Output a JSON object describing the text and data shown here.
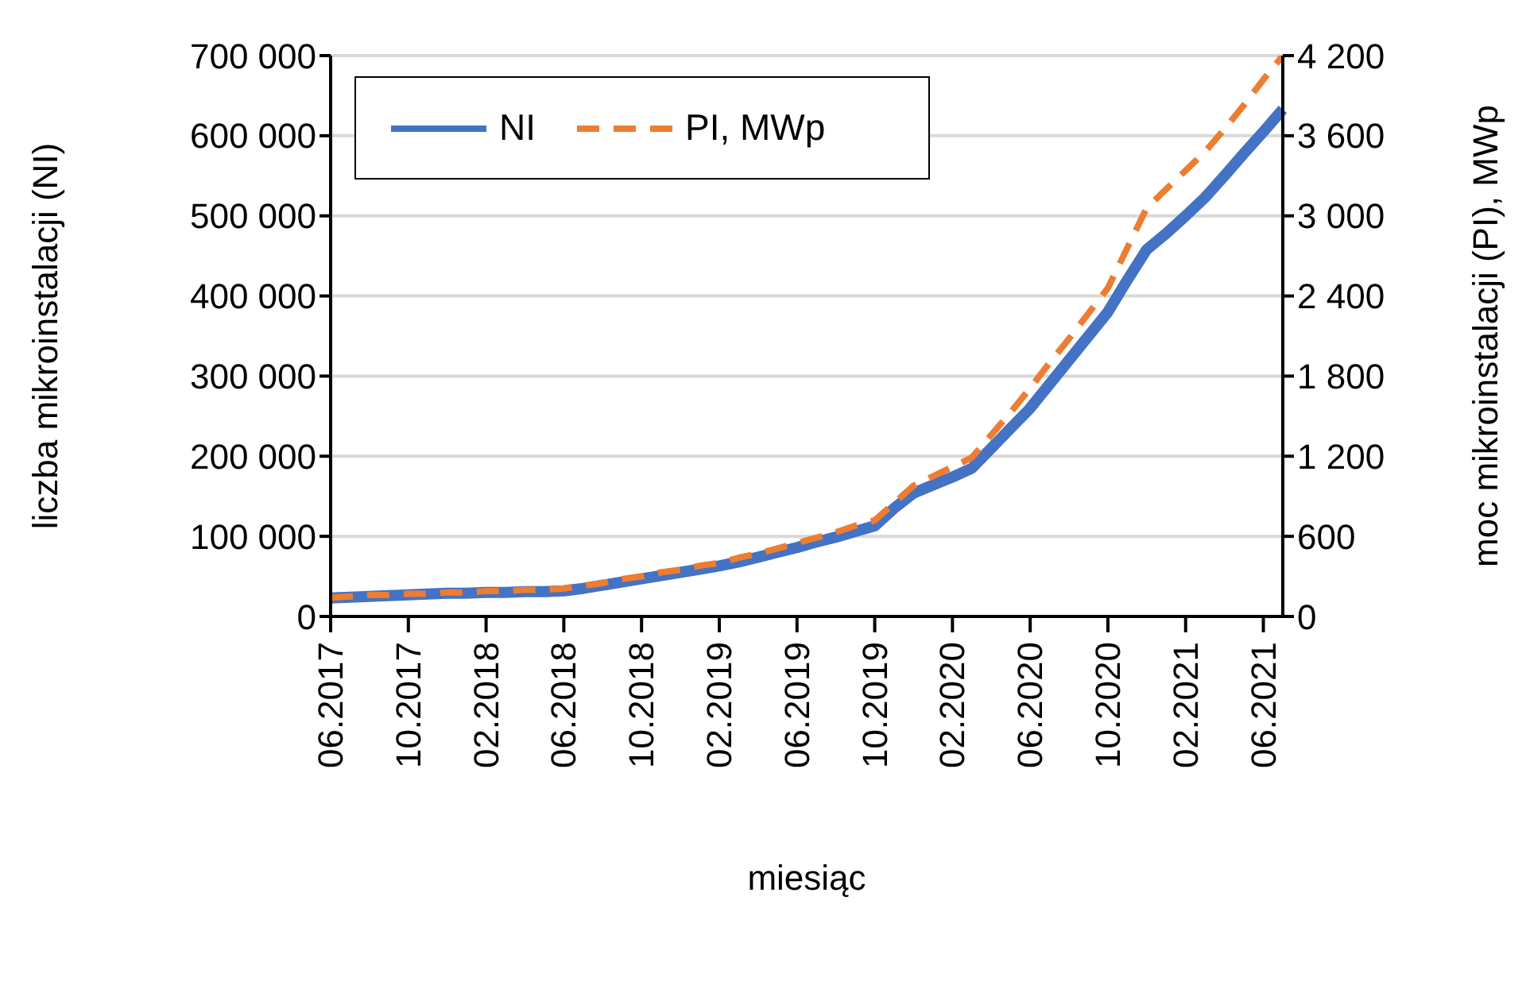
{
  "chart_data": {
    "type": "line",
    "xlabel": "miesiąc",
    "ylabel": "liczba mikroinstalacji (NI)",
    "y2label": "moc mikroinstalacji (PI),   MWp",
    "categories": [
      "06.2017",
      null,
      null,
      null,
      "10.2017",
      null,
      null,
      null,
      "02.2018",
      null,
      null,
      null,
      "06.2018",
      null,
      null,
      null,
      "10.2018",
      null,
      null,
      null,
      "02.2019",
      null,
      null,
      null,
      "06.2019",
      null,
      null,
      null,
      "10.2019",
      null,
      null,
      null,
      "02.2020",
      null,
      null,
      null,
      "06.2020",
      null,
      null,
      null,
      "10.2020",
      null,
      null,
      null,
      "02.2021",
      null,
      null,
      null,
      "06.2021",
      null
    ],
    "series": [
      {
        "name": "NI",
        "color": "#4472c4",
        "line_style": "solid",
        "values": [
          23000,
          24000,
          25000,
          26000,
          27000,
          28000,
          29000,
          29000,
          30000,
          30000,
          31000,
          31000,
          32000,
          35000,
          39000,
          43000,
          47000,
          51000,
          55000,
          59000,
          63000,
          68000,
          74000,
          80000,
          86000,
          93000,
          99000,
          106000,
          113000,
          135000,
          154000,
          164000,
          174000,
          185000,
          210000,
          235000,
          260000,
          290000,
          320000,
          350000,
          380000,
          420000,
          458000,
          478000,
          500000,
          523000,
          550000,
          578000,
          605000,
          633000
        ]
      },
      {
        "name": "PI, MWp",
        "color": "#ed7d31",
        "line_style": "dashed",
        "axis": "y2",
        "values": [
          140,
          150,
          160,
          160,
          170,
          170,
          180,
          180,
          190,
          190,
          200,
          200,
          210,
          230,
          250,
          280,
          300,
          330,
          350,
          380,
          400,
          440,
          470,
          510,
          550,
          590,
          630,
          680,
          720,
          850,
          980,
          1050,
          1120,
          1190,
          1360,
          1530,
          1710,
          1900,
          2080,
          2270,
          2460,
          2760,
          3060,
          3200,
          3340,
          3480,
          3650,
          3830,
          4020,
          4200
        ]
      }
    ],
    "ylim": [
      0,
      700000
    ],
    "yticks": [
      0,
      {
        "value": 100000,
        "label": "100 000"
      },
      {
        "value": 200000,
        "label": "200 000"
      },
      {
        "value": 300000,
        "label": "300 000"
      },
      {
        "value": 400000,
        "label": "400 000"
      },
      {
        "value": 500000,
        "label": "500 000"
      },
      {
        "value": 600000,
        "label": "600 000"
      },
      {
        "value": 700000,
        "label": "700 000"
      }
    ],
    "y2lim": [
      0,
      4200
    ],
    "y2ticks": [
      0,
      600,
      {
        "value": 1200,
        "label": "1 200"
      },
      {
        "value": 1800,
        "label": "1 800"
      },
      {
        "value": 2400,
        "label": "2 400"
      },
      {
        "value": 3000,
        "label": "3 000"
      },
      {
        "value": 3600,
        "label": "3 600"
      },
      {
        "value": 4200,
        "label": "4 200"
      }
    ],
    "grid": "y",
    "legend": "top left",
    "marker": "none"
  }
}
